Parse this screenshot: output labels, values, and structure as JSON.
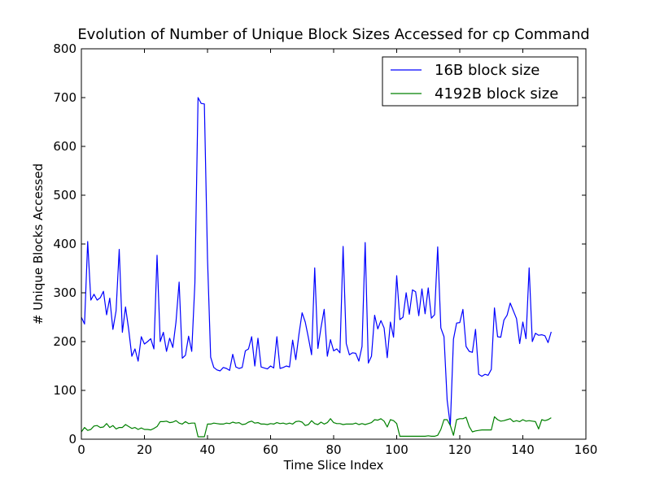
{
  "chart_data": {
    "type": "line",
    "title": "Evolution of Number of Unique Block Sizes Accessed for cp Command",
    "xlabel": "Time Slice Index",
    "ylabel": "# Unique Blocks Accessed",
    "xlim": [
      0,
      160
    ],
    "ylim": [
      0,
      800
    ],
    "xticks": [
      0,
      20,
      40,
      60,
      80,
      100,
      120,
      140,
      160
    ],
    "yticks": [
      0,
      100,
      200,
      300,
      400,
      500,
      600,
      700,
      800
    ],
    "grid": false,
    "legend_position": "top-right",
    "series": [
      {
        "name": "16B block size",
        "color": "#0000ff",
        "y": [
          250,
          236,
          405,
          285,
          297,
          285,
          290,
          303,
          255,
          289,
          225,
          263,
          389,
          219,
          271,
          225,
          170,
          185,
          160,
          210,
          195,
          200,
          206,
          185,
          377,
          200,
          219,
          180,
          207,
          188,
          240,
          322,
          166,
          172,
          211,
          180,
          320,
          700,
          688,
          687,
          370,
          168,
          147,
          142,
          140,
          147,
          145,
          141,
          174,
          148,
          145,
          147,
          181,
          185,
          210,
          150,
          207,
          148,
          146,
          144,
          150,
          146,
          210,
          145,
          147,
          150,
          148,
          203,
          163,
          215,
          259,
          240,
          208,
          173,
          351,
          186,
          229,
          266,
          170,
          204,
          181,
          185,
          177,
          395,
          196,
          173,
          177,
          176,
          160,
          190,
          403,
          156,
          170,
          254,
          226,
          243,
          228,
          167,
          240,
          209,
          335,
          245,
          250,
          300,
          256,
          306,
          302,
          253,
          308,
          257,
          310,
          248,
          255,
          394,
          228,
          210,
          80,
          28,
          205,
          238,
          239,
          266,
          190,
          180,
          178,
          225,
          133,
          129,
          133,
          131,
          143,
          269,
          210,
          209,
          244,
          254,
          279,
          263,
          247,
          196,
          240,
          206,
          351,
          200,
          217,
          213,
          214,
          212,
          198,
          220
        ]
      },
      {
        "name": "4192B block size",
        "color": "#008000",
        "y": [
          15,
          24,
          18,
          20,
          27,
          28,
          24,
          25,
          32,
          24,
          28,
          21,
          24,
          24,
          30,
          26,
          22,
          24,
          20,
          23,
          20,
          20,
          19,
          22,
          26,
          36,
          36,
          37,
          34,
          35,
          38,
          33,
          31,
          36,
          32,
          33,
          33,
          5,
          5,
          5,
          31,
          31,
          33,
          32,
          31,
          31,
          33,
          32,
          35,
          33,
          34,
          30,
          31,
          35,
          37,
          33,
          34,
          31,
          31,
          30,
          32,
          31,
          34,
          32,
          33,
          31,
          33,
          31,
          36,
          37,
          35,
          28,
          30,
          38,
          32,
          30,
          35,
          31,
          34,
          42,
          34,
          32,
          32,
          30,
          31,
          31,
          31,
          33,
          30,
          32,
          30,
          32,
          34,
          40,
          39,
          42,
          37,
          25,
          40,
          38,
          32,
          6,
          6,
          6,
          6,
          6,
          6,
          6,
          6,
          6,
          7,
          6,
          6,
          8,
          20,
          40,
          40,
          28,
          8,
          40,
          42,
          42,
          45,
          26,
          15,
          17,
          18,
          19,
          19,
          19,
          19,
          46,
          40,
          37,
          38,
          40,
          42,
          36,
          38,
          36,
          40,
          37,
          38,
          37,
          36,
          21,
          40,
          38,
          40,
          44
        ]
      }
    ]
  }
}
